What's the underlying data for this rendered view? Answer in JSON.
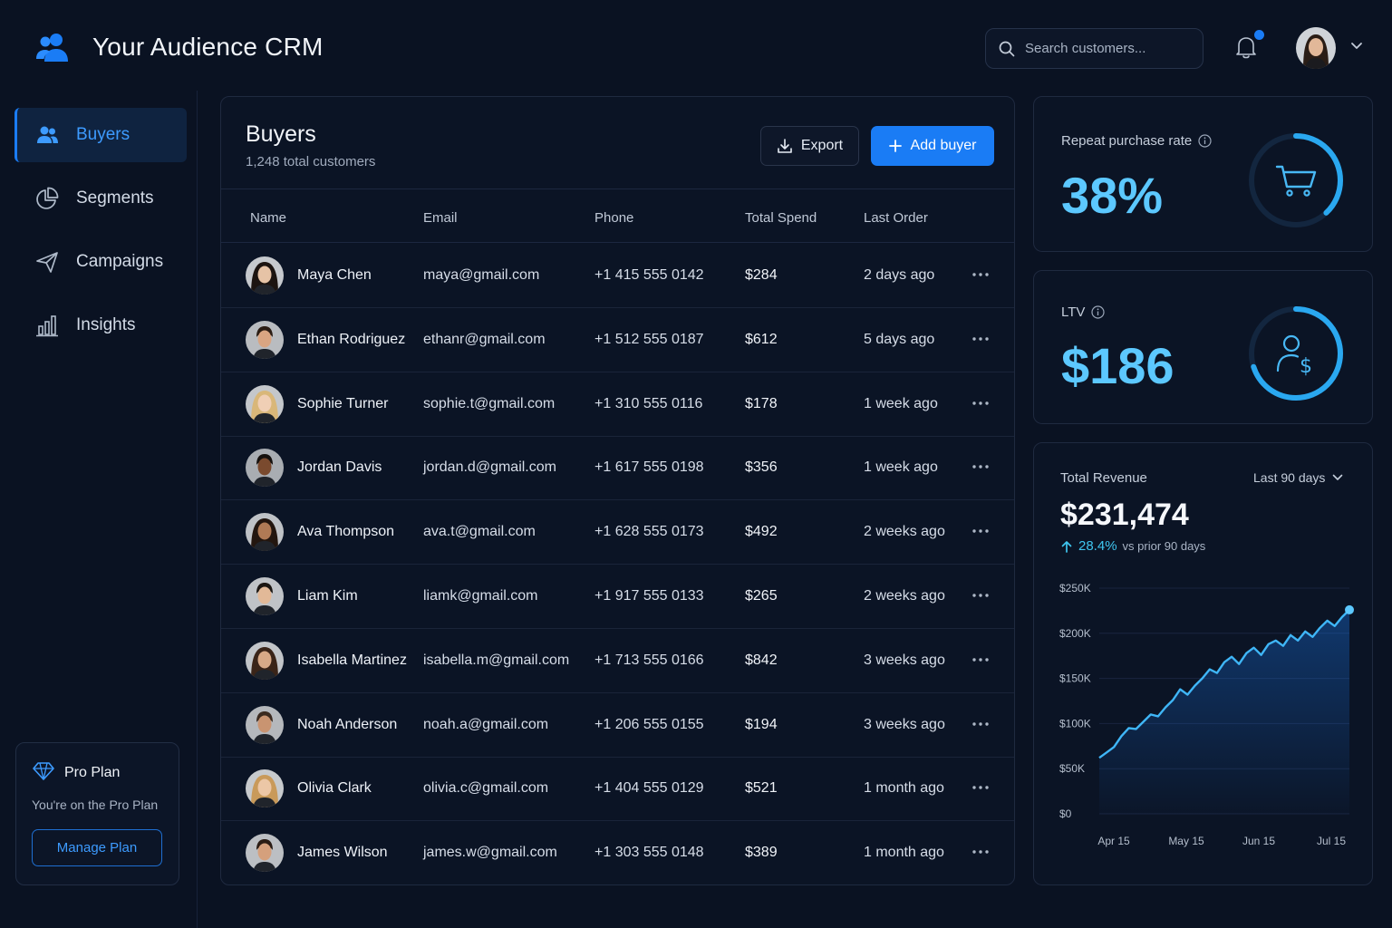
{
  "app": {
    "title": "Your Audience CRM"
  },
  "search": {
    "placeholder": "Search customers..."
  },
  "sidebar": {
    "items": [
      {
        "label": "Buyers",
        "icon": "users-icon",
        "active": true
      },
      {
        "label": "Segments",
        "icon": "pie-chart-icon",
        "active": false
      },
      {
        "label": "Campaigns",
        "icon": "paper-plane-icon",
        "active": false
      },
      {
        "label": "Insights",
        "icon": "bar-chart-icon",
        "active": false
      }
    ],
    "plan": {
      "title": "Pro Plan",
      "description": "You're on the Pro Plan",
      "button": "Manage Plan"
    }
  },
  "buyers": {
    "title": "Buyers",
    "subtitle": "1,248 total customers",
    "export_label": "Export",
    "add_label": "Add buyer",
    "columns": [
      "Name",
      "Email",
      "Phone",
      "Total Spend",
      "Last Order"
    ],
    "rows": [
      {
        "name": "Maya Chen",
        "email": "maya@gmail.com",
        "phone": "+1 415 555 0142",
        "spend": "$284",
        "last_order": "2 days ago"
      },
      {
        "name": "Ethan Rodriguez",
        "email": "ethanr@gmail.com",
        "phone": "+1 512 555 0187",
        "spend": "$612",
        "last_order": "5 days ago"
      },
      {
        "name": "Sophie Turner",
        "email": "sophie.t@gmail.com",
        "phone": "+1 310 555 0116",
        "spend": "$178",
        "last_order": "1 week ago"
      },
      {
        "name": "Jordan Davis",
        "email": "jordan.d@gmail.com",
        "phone": "+1 617 555 0198",
        "spend": "$356",
        "last_order": "1 week ago"
      },
      {
        "name": "Ava Thompson",
        "email": "ava.t@gmail.com",
        "phone": "+1 628 555 0173",
        "spend": "$492",
        "last_order": "2 weeks ago"
      },
      {
        "name": "Liam Kim",
        "email": "liamk@gmail.com",
        "phone": "+1 917 555 0133",
        "spend": "$265",
        "last_order": "2 weeks ago"
      },
      {
        "name": "Isabella Martinez",
        "email": "isabella.m@gmail.com",
        "phone": "+1 713 555 0166",
        "spend": "$842",
        "last_order": "3 weeks ago"
      },
      {
        "name": "Noah Anderson",
        "email": "noah.a@gmail.com",
        "phone": "+1 206 555 0155",
        "spend": "$194",
        "last_order": "3 weeks ago"
      },
      {
        "name": "Olivia Clark",
        "email": "olivia.c@gmail.com",
        "phone": "+1 404 555 0129",
        "spend": "$521",
        "last_order": "1 month ago"
      },
      {
        "name": "James Wilson",
        "email": "james.w@gmail.com",
        "phone": "+1 303 555 0148",
        "spend": "$389",
        "last_order": "1 month ago"
      }
    ]
  },
  "kpis": {
    "repeat": {
      "label": "Repeat purchase rate",
      "value": "38%",
      "ring_fraction": 0.38,
      "icon": "cart-icon"
    },
    "ltv": {
      "label": "LTV",
      "value": "$186",
      "ring_fraction": 0.7,
      "icon": "user-dollar-icon"
    }
  },
  "revenue": {
    "title": "Total Revenue",
    "range": "Last 90 days",
    "value": "$231,474",
    "change": "28.4%",
    "change_note": "vs prior 90 days"
  },
  "colors": {
    "accent": "#1a7cf5",
    "highlight": "#5cc8ff",
    "background": "#0a1222",
    "card": "#0b1425"
  },
  "chart_data": {
    "type": "area",
    "title": "Total Revenue",
    "x_ticks": [
      "Apr 15",
      "May 15",
      "Jun 15",
      "Jul 15"
    ],
    "y_ticks": [
      "$0",
      "$50K",
      "$100K",
      "$150K",
      "$200K",
      "$250K"
    ],
    "ylim": [
      0,
      250000
    ],
    "grid": true,
    "series": [
      {
        "values": [
          62000,
          68000,
          74000,
          86000,
          95000,
          94000,
          102000,
          110000,
          108000,
          118000,
          126000,
          138000,
          132000,
          142000,
          150000,
          160000,
          156000,
          168000,
          174000,
          166000,
          178000,
          184000,
          176000,
          188000,
          192000,
          186000,
          198000,
          192000,
          202000,
          196000,
          206000,
          214000,
          208000,
          218000,
          226000
        ]
      }
    ]
  }
}
